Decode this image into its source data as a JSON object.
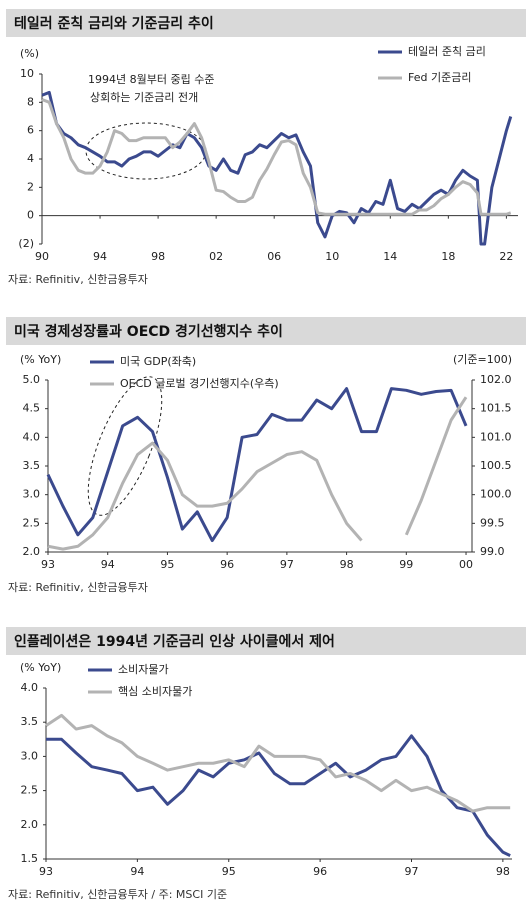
{
  "chart_data": [
    {
      "type": "line",
      "title": "테일러 준칙 금리와 기준금리 추이",
      "ylabel": "(%)",
      "legend": "upper right",
      "annotations": [
        "1994년 8월부터 중립 수준",
        "상회하는 기준금리 전개"
      ],
      "source": "자료: Refinitiv, 신한금융투자",
      "x": [
        1990,
        1990.5,
        1991,
        1991.5,
        1992,
        1992.5,
        1993,
        1993.5,
        1994,
        1994.5,
        1995,
        1995.5,
        1996,
        1996.5,
        1997,
        1997.5,
        1998,
        1998.5,
        1999,
        1999.5,
        2000,
        2000.5,
        2001,
        2001.5,
        2002,
        2002.5,
        2003,
        2003.5,
        2004,
        2004.5,
        2005,
        2005.5,
        2006,
        2006.5,
        2007,
        2007.5,
        2008,
        2008.5,
        2009,
        2009.5,
        2010,
        2010.5,
        2011,
        2011.5,
        2012,
        2012.5,
        2013,
        2013.5,
        2014,
        2014.5,
        2015,
        2015.5,
        2016,
        2016.5,
        2017,
        2017.5,
        2018,
        2018.5,
        2019,
        2019.5,
        2020,
        2020.25,
        2020.5,
        2021,
        2021.5,
        2022,
        2022.3
      ],
      "series": [
        {
          "name": "테일러 준칙 금리",
          "color": "#3b4a8e",
          "values": [
            8.5,
            8.7,
            6.5,
            5.8,
            5.5,
            5.0,
            4.8,
            4.5,
            4.2,
            3.8,
            3.8,
            3.5,
            4.0,
            4.2,
            4.5,
            4.5,
            4.2,
            4.6,
            5.0,
            4.8,
            5.8,
            5.5,
            4.8,
            3.5,
            3.2,
            4.0,
            3.2,
            3.0,
            4.3,
            4.5,
            5.0,
            4.8,
            5.3,
            5.8,
            5.5,
            5.7,
            4.5,
            3.5,
            -0.5,
            -1.5,
            0.0,
            0.3,
            0.2,
            -0.5,
            0.5,
            0.2,
            1.0,
            0.8,
            2.5,
            0.5,
            0.3,
            0.8,
            0.5,
            1.0,
            1.5,
            1.8,
            1.5,
            2.5,
            3.2,
            2.8,
            2.5,
            -2.0,
            -2.0,
            2.0,
            4.0,
            6.0,
            7.0
          ]
        },
        {
          "name": "Fed 기준금리",
          "color": "#b3b3b3",
          "values": [
            8.2,
            8.0,
            6.5,
            5.5,
            4.0,
            3.2,
            3.0,
            3.0,
            3.5,
            4.5,
            6.0,
            5.8,
            5.3,
            5.3,
            5.5,
            5.5,
            5.5,
            5.5,
            4.8,
            5.2,
            5.8,
            6.5,
            5.5,
            3.8,
            1.8,
            1.7,
            1.3,
            1.0,
            1.0,
            1.3,
            2.5,
            3.3,
            4.3,
            5.2,
            5.3,
            5.0,
            3.0,
            2.0,
            0.2,
            0.1,
            0.1,
            0.1,
            0.1,
            0.1,
            0.1,
            0.1,
            0.1,
            0.1,
            0.1,
            0.1,
            0.1,
            0.1,
            0.4,
            0.4,
            0.7,
            1.2,
            1.5,
            2.0,
            2.4,
            2.2,
            1.6,
            0.1,
            0.1,
            0.1,
            0.1,
            0.1,
            0.2
          ]
        }
      ],
      "xlim": [
        1990,
        2022.8
      ],
      "xticks": [
        {
          "value": 1990,
          "label": "90"
        },
        {
          "value": 1994,
          "label": "94"
        },
        {
          "value": 1998,
          "label": "98"
        },
        {
          "value": 2002,
          "label": "02"
        },
        {
          "value": 2006,
          "label": "06"
        },
        {
          "value": 2010,
          "label": "10"
        },
        {
          "value": 2014,
          "label": "14"
        },
        {
          "value": 2018,
          "label": "18"
        },
        {
          "value": 2022,
          "label": "22"
        }
      ],
      "ylim": [
        -2,
        10
      ],
      "yticks": [
        {
          "value": -2,
          "label": "(2)"
        },
        0,
        2,
        4,
        6,
        8,
        10
      ]
    },
    {
      "type": "line",
      "title": "미국 경제성장률과 OECD 경기선행지수 추이",
      "ylabel": "(% YoY)",
      "y2label": "(기준=100)",
      "legend": "upper left",
      "source": "자료: Refinitiv, 신한금융투자",
      "x": [
        1993,
        1993.25,
        1993.5,
        1993.75,
        1994,
        1994.25,
        1994.5,
        1994.75,
        1995,
        1995.25,
        1995.5,
        1995.75,
        1996,
        1996.25,
        1996.5,
        1996.75,
        1997,
        1997.25,
        1997.5,
        1997.75,
        1998,
        1998.25,
        1998.5,
        1998.75,
        1999,
        1999.25,
        1999.5,
        1999.75,
        2000
      ],
      "series": [
        {
          "name": "미국 GDP(좌축)",
          "color": "#3b4a8e",
          "values": [
            3.35,
            2.8,
            2.3,
            2.6,
            3.4,
            4.2,
            4.35,
            4.1,
            3.3,
            2.4,
            2.7,
            2.2,
            2.6,
            4.0,
            4.05,
            4.4,
            4.3,
            4.3,
            4.65,
            4.5,
            4.85,
            4.1,
            4.1,
            4.85,
            4.82,
            4.75,
            4.8,
            4.82,
            4.2
          ]
        },
        {
          "name": "OECD 글로벌 경기선행지수(우측)",
          "color": "#b3b3b3",
          "axis": "y2",
          "values": [
            99.1,
            99.05,
            99.1,
            99.3,
            99.6,
            100.2,
            100.7,
            100.9,
            100.6,
            100.0,
            99.8,
            99.8,
            99.85,
            100.1,
            100.4,
            100.55,
            100.7,
            100.75,
            100.6,
            100.0,
            99.5,
            99.2,
            null,
            null,
            99.3,
            99.9,
            100.6,
            101.3,
            101.7
          ]
        }
      ],
      "xlim": [
        1993,
        2000.1
      ],
      "xticks": [
        {
          "value": 1993,
          "label": "93"
        },
        {
          "value": 1994,
          "label": "94"
        },
        {
          "value": 1995,
          "label": "95"
        },
        {
          "value": 1996,
          "label": "96"
        },
        {
          "value": 1997,
          "label": "97"
        },
        {
          "value": 1998,
          "label": "98"
        },
        {
          "value": 1999,
          "label": "99"
        },
        {
          "value": 2000,
          "label": "00"
        }
      ],
      "ylim": [
        2,
        5
      ],
      "yticks": [
        {
          "value": 2,
          "label": "2.0"
        },
        2.5,
        {
          "value": 3,
          "label": "3.0"
        },
        3.5,
        {
          "value": 4,
          "label": "4.0"
        },
        4.5,
        {
          "value": 5,
          "label": "5.0"
        }
      ],
      "y2lim": [
        99,
        102
      ],
      "y2ticks": [
        {
          "value": 99,
          "label": "99.0"
        },
        99.5,
        {
          "value": 100,
          "label": "100.0"
        },
        100.5,
        {
          "value": 101,
          "label": "101.0"
        },
        101.5,
        {
          "value": 102,
          "label": "102.0"
        }
      ]
    },
    {
      "type": "line",
      "title": "인플레이션은 1994년 기준금리 인상 사이클에서 제어",
      "ylabel": "(% YoY)",
      "legend": "upper left",
      "source": "자료: Refinitiv, 신한금융투자 / 주: MSCI 기준",
      "x": [
        1993,
        1993.17,
        1993.33,
        1993.5,
        1993.67,
        1993.83,
        1994,
        1994.17,
        1994.33,
        1994.5,
        1994.67,
        1994.83,
        1995,
        1995.17,
        1995.33,
        1995.5,
        1995.67,
        1995.83,
        1996,
        1996.17,
        1996.33,
        1996.5,
        1996.67,
        1996.83,
        1997,
        1997.17,
        1997.33,
        1997.5,
        1997.67,
        1997.83,
        1998,
        1998.08
      ],
      "series": [
        {
          "name": "소비자물가",
          "color": "#3b4a8e",
          "values": [
            3.25,
            3.25,
            3.05,
            2.85,
            2.8,
            2.75,
            2.5,
            2.55,
            2.3,
            2.5,
            2.8,
            2.7,
            2.9,
            2.95,
            3.05,
            2.75,
            2.6,
            2.6,
            2.75,
            2.9,
            2.7,
            2.8,
            2.95,
            3.0,
            3.3,
            3.0,
            2.5,
            2.25,
            2.2,
            1.85,
            1.6,
            1.55
          ]
        },
        {
          "name": "핵심 소비자물가",
          "color": "#b3b3b3",
          "values": [
            3.45,
            3.6,
            3.4,
            3.45,
            3.3,
            3.2,
            3.0,
            2.9,
            2.8,
            2.85,
            2.9,
            2.9,
            2.95,
            2.85,
            3.15,
            3.0,
            3.0,
            3.0,
            2.95,
            2.7,
            2.75,
            2.65,
            2.5,
            2.65,
            2.5,
            2.55,
            2.45,
            2.35,
            2.2,
            2.25,
            2.25,
            2.25
          ]
        }
      ],
      "xlim": [
        1993,
        1998.1
      ],
      "xticks": [
        {
          "value": 1993,
          "label": "93"
        },
        {
          "value": 1994,
          "label": "94"
        },
        {
          "value": 1995,
          "label": "95"
        },
        {
          "value": 1996,
          "label": "96"
        },
        {
          "value": 1997,
          "label": "97"
        },
        {
          "value": 1998,
          "label": "98"
        }
      ],
      "ylim": [
        1.5,
        4
      ],
      "yticks": [
        1.5,
        {
          "value": 2,
          "label": "2.0"
        },
        2.5,
        {
          "value": 3,
          "label": "3.0"
        },
        3.5,
        {
          "value": 4,
          "label": "4.0"
        }
      ]
    }
  ]
}
